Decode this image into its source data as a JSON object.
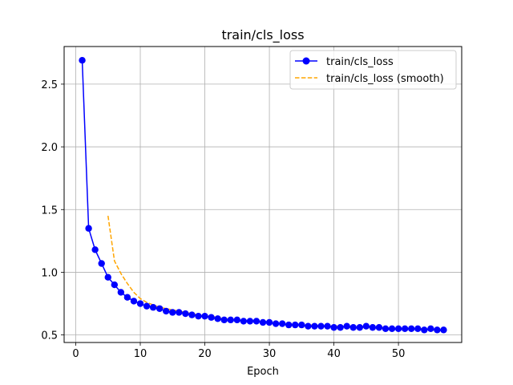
{
  "chart_data": {
    "type": "line",
    "title": "train/cls_loss",
    "xlabel": "Epoch",
    "ylabel": "",
    "xlim": [
      -1.8,
      59.8
    ],
    "ylim": [
      0.44,
      2.8
    ],
    "xticks": [
      0,
      10,
      20,
      30,
      40,
      50
    ],
    "yticks": [
      0.5,
      1.0,
      1.5,
      2.0,
      2.5
    ],
    "xtick_labels": [
      "0",
      "10",
      "20",
      "30",
      "40",
      "50"
    ],
    "ytick_labels": [
      "0.5",
      "1.0",
      "1.5",
      "2.0",
      "2.5"
    ],
    "grid": true,
    "legend_position": "top-right",
    "series": [
      {
        "name": "train/cls_loss",
        "color": "#0000ff",
        "style": "solid-with-circle-markers",
        "x": [
          1,
          2,
          3,
          4,
          5,
          6,
          7,
          8,
          9,
          10,
          11,
          12,
          13,
          14,
          15,
          16,
          17,
          18,
          19,
          20,
          21,
          22,
          23,
          24,
          25,
          26,
          27,
          28,
          29,
          30,
          31,
          32,
          33,
          34,
          35,
          36,
          37,
          38,
          39,
          40,
          41,
          42,
          43,
          44,
          45,
          46,
          47,
          48,
          49,
          50,
          51,
          52,
          53,
          54,
          55,
          56,
          57
        ],
        "y": [
          2.69,
          1.35,
          1.18,
          1.07,
          0.96,
          0.9,
          0.84,
          0.8,
          0.77,
          0.75,
          0.73,
          0.72,
          0.71,
          0.69,
          0.68,
          0.68,
          0.67,
          0.66,
          0.65,
          0.65,
          0.64,
          0.63,
          0.62,
          0.62,
          0.62,
          0.61,
          0.61,
          0.61,
          0.6,
          0.6,
          0.59,
          0.59,
          0.58,
          0.58,
          0.58,
          0.57,
          0.57,
          0.57,
          0.57,
          0.56,
          0.56,
          0.57,
          0.56,
          0.56,
          0.57,
          0.56,
          0.56,
          0.55,
          0.55,
          0.55,
          0.55,
          0.55,
          0.55,
          0.54,
          0.55,
          0.54,
          0.54
        ]
      },
      {
        "name": "train/cls_loss (smooth)",
        "color": "#ffa500",
        "style": "dashed",
        "x": [
          5,
          6,
          7,
          8,
          9,
          10,
          11,
          12,
          13,
          14,
          15,
          16,
          17,
          18,
          19,
          20,
          21,
          22,
          23,
          24,
          25,
          26,
          27,
          28,
          29,
          30,
          31,
          32,
          33,
          34,
          35,
          36,
          37,
          38,
          39,
          40,
          41,
          42,
          43,
          44,
          45,
          46,
          47,
          48,
          49,
          50,
          51,
          52,
          53,
          54,
          55,
          56,
          57
        ],
        "y": [
          1.45,
          1.09,
          0.99,
          0.91,
          0.84,
          0.79,
          0.76,
          0.74,
          0.72,
          0.71,
          0.7,
          0.69,
          0.68,
          0.67,
          0.66,
          0.65,
          0.65,
          0.64,
          0.63,
          0.63,
          0.62,
          0.62,
          0.61,
          0.61,
          0.61,
          0.6,
          0.6,
          0.59,
          0.59,
          0.59,
          0.58,
          0.58,
          0.58,
          0.57,
          0.57,
          0.57,
          0.57,
          0.56,
          0.56,
          0.56,
          0.56,
          0.56,
          0.56,
          0.56,
          0.55,
          0.55,
          0.55,
          0.55,
          0.55,
          0.55,
          0.54,
          0.54,
          0.54
        ]
      }
    ]
  }
}
